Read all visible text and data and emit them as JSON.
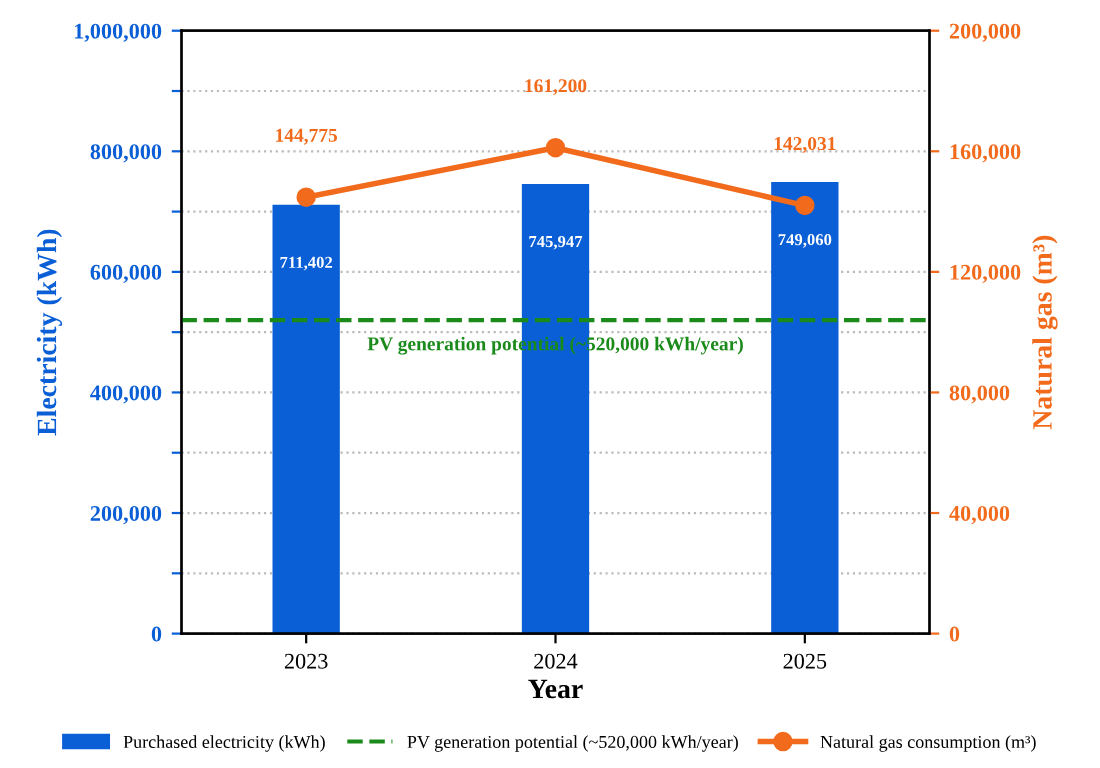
{
  "chart_data": {
    "type": "bar",
    "xlabel": "Year",
    "ylabel": "Electricity (kWh)",
    "y2label": "Natural gas (m³)",
    "categories": [
      "2023",
      "2024",
      "2025"
    ],
    "series": [
      {
        "name": "Purchased electricity (kWh)",
        "color": "#0a5fd6",
        "values": [
          711402,
          745947,
          749060
        ],
        "value_labels": [
          "711,402",
          "745,947",
          "749,060"
        ]
      },
      {
        "name": "Natural gas consumption (m³)",
        "type": "line",
        "axis": "y2",
        "color": "#f26a1b",
        "marker": "circle",
        "line_style": "solid",
        "values": [
          144775,
          161200,
          142031
        ],
        "value_labels": [
          "144,775",
          "161,200",
          "142,031"
        ]
      }
    ],
    "ylim": [
      0,
      1000000
    ],
    "yticks": [
      {
        "value": 0,
        "label": "0"
      },
      {
        "value": 100000,
        "label": null
      },
      {
        "value": 200000,
        "label": "200,000"
      },
      {
        "value": 300000,
        "label": null
      },
      {
        "value": 400000,
        "label": "400,000"
      },
      {
        "value": 500000,
        "label": null
      },
      {
        "value": 600000,
        "label": "600,000"
      },
      {
        "value": 700000,
        "label": null
      },
      {
        "value": 800000,
        "label": "800,000"
      },
      {
        "value": 900000,
        "label": null
      },
      {
        "value": 1000000,
        "label": "1,000,000"
      }
    ],
    "y2lim": [
      0,
      200000
    ],
    "y2ticks": [
      {
        "value": 0,
        "label": "0"
      },
      {
        "value": 40000,
        "label": "40,000"
      },
      {
        "value": 80000,
        "label": "80,000"
      },
      {
        "value": 120000,
        "label": "120,000"
      },
      {
        "value": 160000,
        "label": "160,000"
      },
      {
        "value": 200000,
        "label": "200,000"
      }
    ],
    "ref_lines": [
      {
        "axis": "y",
        "value": 520000,
        "label": "PV generation potential (~520,000 kWh/year)",
        "color": "#1a8a1a",
        "line_style": "dashed"
      }
    ],
    "grid": "y",
    "legend": "bottom"
  }
}
